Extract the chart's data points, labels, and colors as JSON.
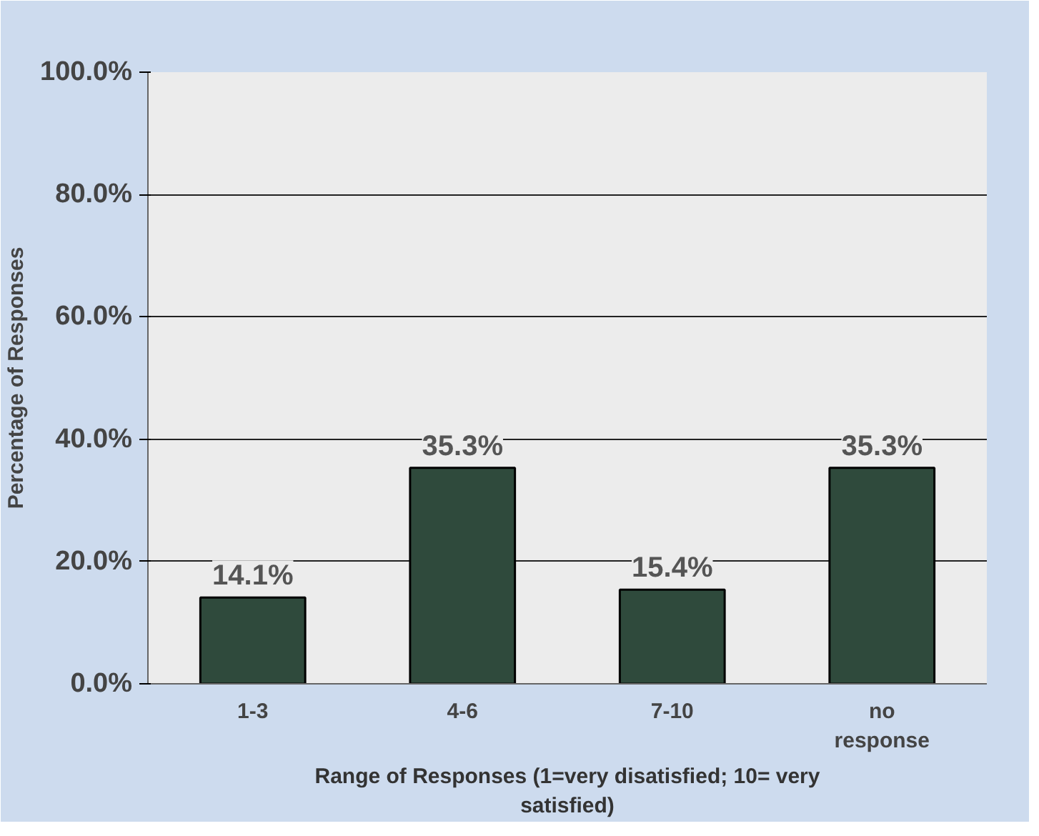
{
  "chart_data": {
    "type": "bar",
    "xlabel": "Range of Responses (1=very disatisfied; 10= very satisfied)",
    "ylabel": "Percentage of Responses",
    "categories": [
      "1-3",
      "4-6",
      "7-10",
      "no response"
    ],
    "values": [
      14.1,
      35.3,
      15.4,
      35.3
    ],
    "value_labels": [
      "14.1%",
      "35.3%",
      "15.4%",
      "35.3%"
    ],
    "color": "#2f4a3c",
    "ylim": [
      0,
      100
    ],
    "yticks": [
      {
        "value": 0,
        "label": "0.0%"
      },
      {
        "value": 20,
        "label": "20.0%"
      },
      {
        "value": 40,
        "label": "40.0%"
      },
      {
        "value": 60,
        "label": "60.0%"
      },
      {
        "value": 80,
        "label": "80.0%"
      },
      {
        "value": 100,
        "label": "100.0%"
      }
    ],
    "grid": "y"
  }
}
